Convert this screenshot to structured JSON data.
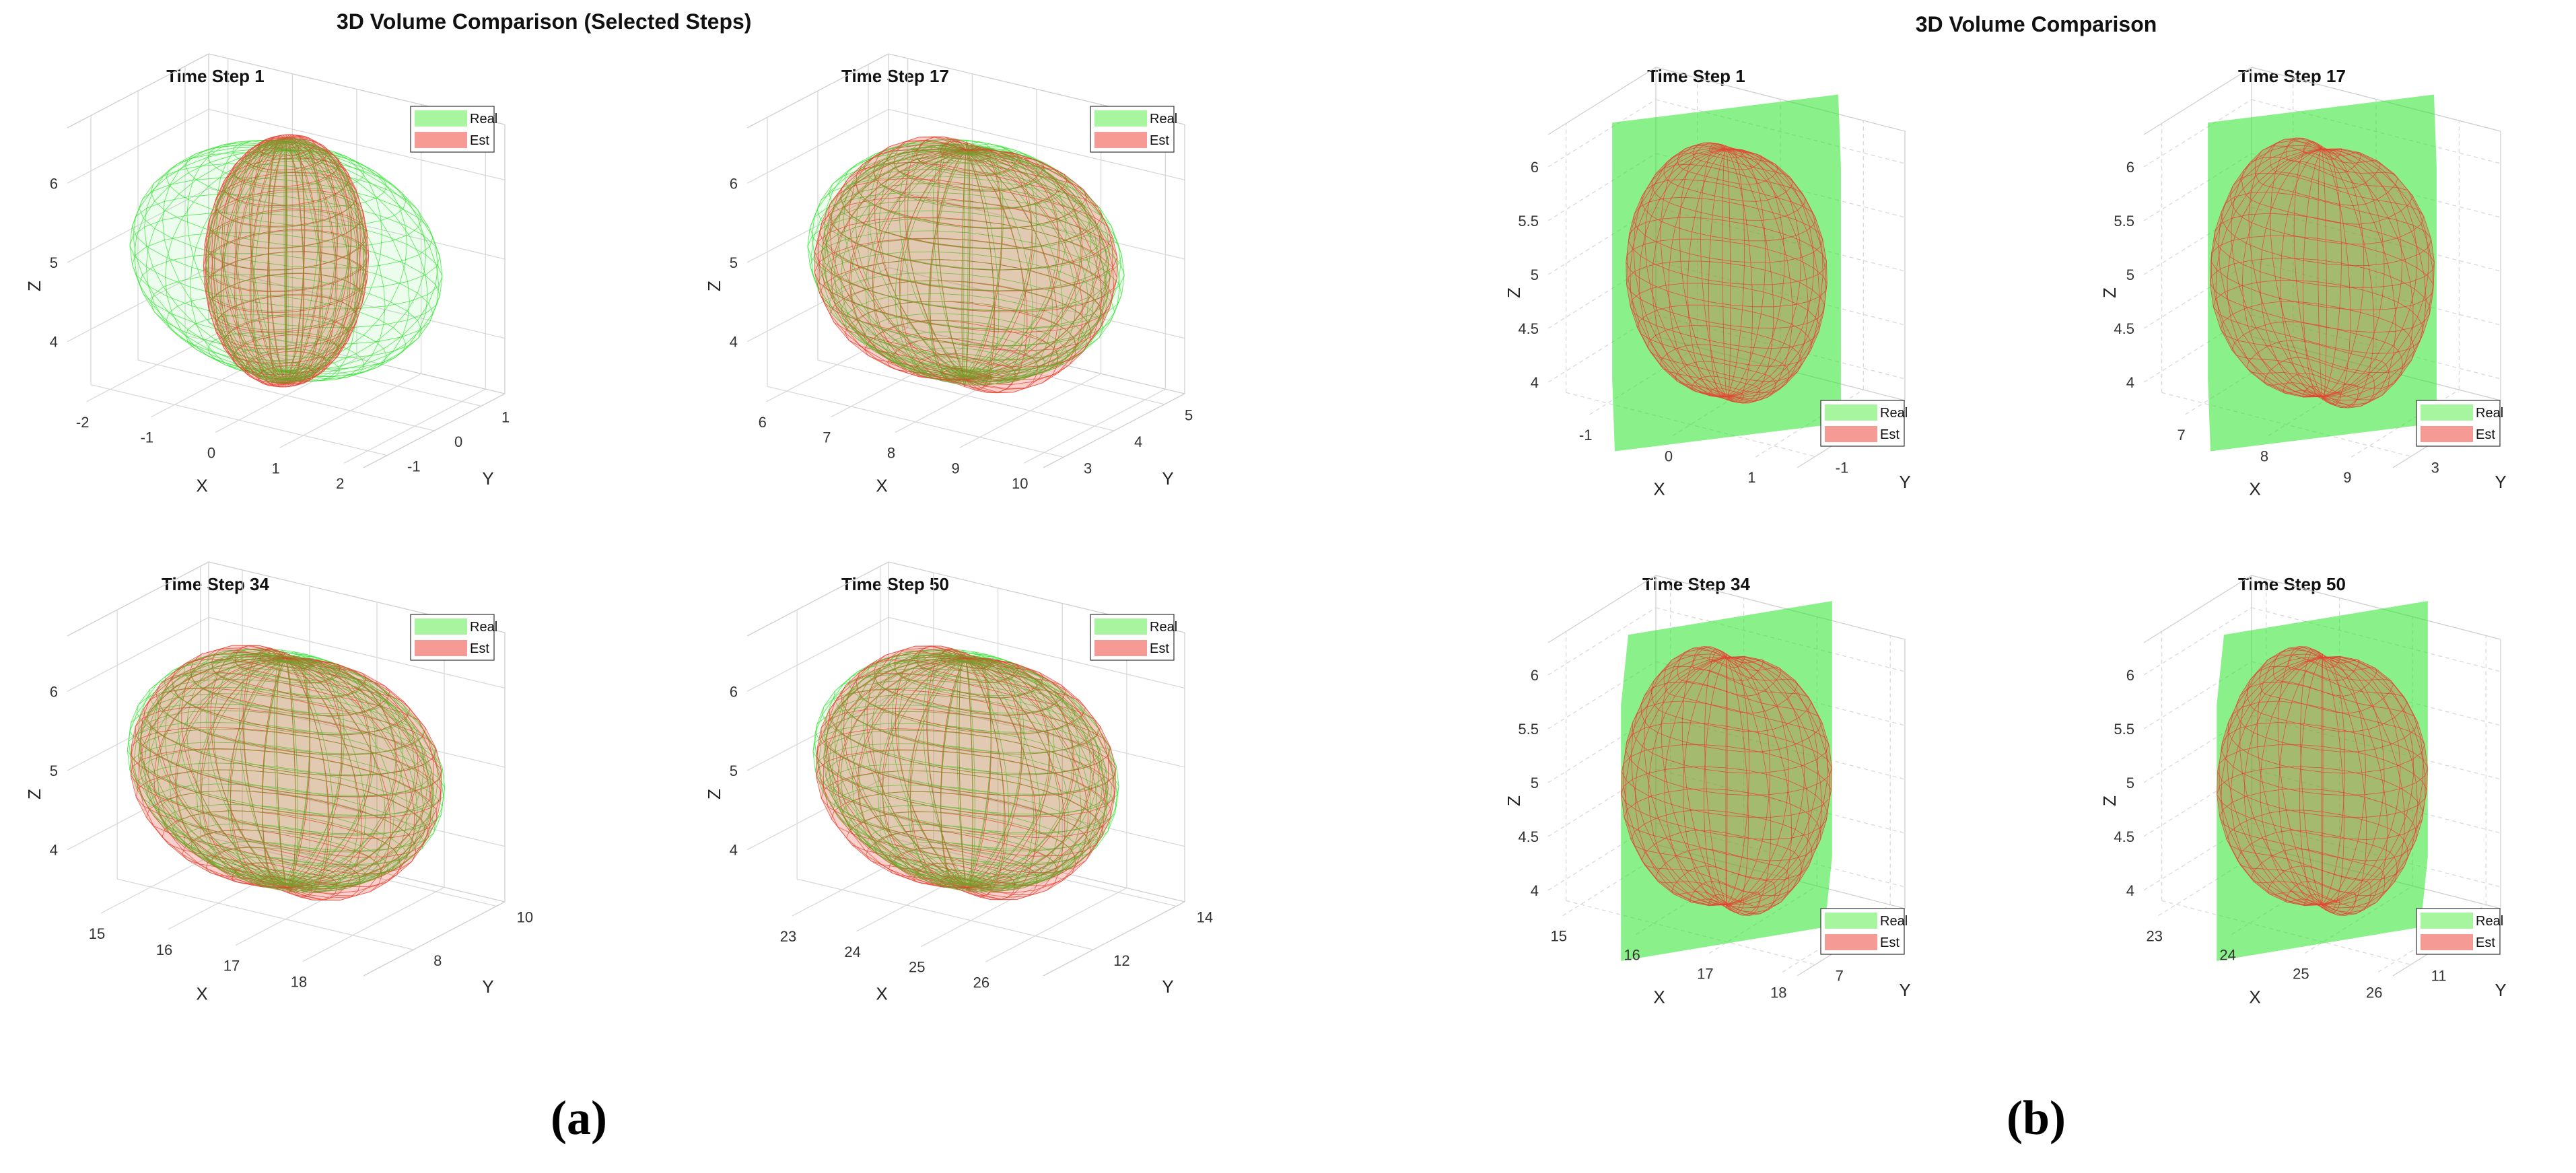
{
  "figure": {
    "left_title": "3D Volume Comparison (Selected Steps)",
    "right_title": "3D Volume Comparison",
    "label_a": "(a)",
    "label_b": "(b)"
  },
  "colors": {
    "real": "#33e633",
    "real_legend": "#a8f5a0",
    "est": "#e8402f",
    "est_legend": "#f59a95",
    "grid": "#d9d9d9",
    "axis": "#555555"
  },
  "chart_data": [
    {
      "type": "3d-surface",
      "panel": "a",
      "title": "Time Step 1",
      "shape": "sphere",
      "xlabel": "X",
      "ylabel": "Y",
      "zlabel": "Z",
      "xticks": [
        "-2",
        "-1",
        "0",
        "1",
        "2"
      ],
      "yticks": [
        "-1",
        "0",
        "1"
      ],
      "zticks": [
        "4",
        "5",
        "6"
      ],
      "xlim": [
        -2.3,
        2.3
      ],
      "ylim": [
        -1.5,
        1.5
      ],
      "zlim": [
        3.3,
        6.7
      ],
      "real": {
        "center": [
          0,
          0,
          5.0
        ],
        "radii": [
          2.2,
          1.4,
          1.4
        ]
      },
      "est": {
        "center": [
          0,
          0,
          5.0
        ],
        "radii": [
          1.0,
          1.1,
          1.55
        ]
      },
      "legend": [
        "Real",
        "Est"
      ],
      "legend_loc": "top-right"
    },
    {
      "type": "3d-surface",
      "panel": "a",
      "title": "Time Step 17",
      "shape": "sphere",
      "xlabel": "X",
      "ylabel": "Y",
      "zlabel": "Z",
      "xticks": [
        "6",
        "7",
        "8",
        "9",
        "10"
      ],
      "yticks": [
        "3",
        "4",
        "5"
      ],
      "zticks": [
        "4",
        "5",
        "6"
      ],
      "xlim": [
        5.7,
        10.3
      ],
      "ylim": [
        2.6,
        5.4
      ],
      "zlim": [
        3.3,
        6.7
      ],
      "real": {
        "center": [
          8,
          4,
          5.0
        ],
        "radii": [
          2.2,
          1.4,
          1.4
        ]
      },
      "est": {
        "center": [
          8,
          4,
          4.95
        ],
        "radii": [
          2.05,
          1.35,
          1.45
        ]
      },
      "legend": [
        "Real",
        "Est"
      ],
      "legend_loc": "top-right"
    },
    {
      "type": "3d-surface",
      "panel": "a",
      "title": "Time Step 34",
      "shape": "sphere",
      "xlabel": "X",
      "ylabel": "Y",
      "zlabel": "Z",
      "xticks": [
        "15",
        "16",
        "17",
        "18"
      ],
      "yticks": [
        "8",
        "10"
      ],
      "zticks": [
        "4",
        "5",
        "6"
      ],
      "xlim": [
        14.5,
        18.9
      ],
      "ylim": [
        6.8,
        10.2
      ],
      "zlim": [
        3.3,
        6.7
      ],
      "real": {
        "center": [
          16.7,
          8.5,
          5.0
        ],
        "radii": [
          2.2,
          1.4,
          1.4
        ]
      },
      "est": {
        "center": [
          16.7,
          8.5,
          4.95
        ],
        "radii": [
          2.1,
          1.38,
          1.45
        ]
      },
      "legend": [
        "Real",
        "Est"
      ],
      "legend_loc": "top-right"
    },
    {
      "type": "3d-surface",
      "panel": "a",
      "title": "Time Step 50",
      "shape": "sphere",
      "xlabel": "X",
      "ylabel": "Y",
      "zlabel": "Z",
      "xticks": [
        "23",
        "24",
        "25",
        "26"
      ],
      "yticks": [
        "12",
        "14"
      ],
      "zticks": [
        "4",
        "5",
        "6"
      ],
      "xlim": [
        22.3,
        26.9
      ],
      "ylim": [
        10.8,
        14.2
      ],
      "zlim": [
        3.3,
        6.7
      ],
      "real": {
        "center": [
          24.6,
          12.5,
          5.0
        ],
        "radii": [
          2.2,
          1.4,
          1.4
        ]
      },
      "est": {
        "center": [
          24.6,
          12.5,
          4.95
        ],
        "radii": [
          2.1,
          1.38,
          1.45
        ]
      },
      "legend": [
        "Real",
        "Est"
      ],
      "legend_loc": "top-right"
    },
    {
      "type": "3d-surface",
      "panel": "b",
      "title": "Time Step 1",
      "shape": "cube",
      "xlabel": "X",
      "ylabel": "Y",
      "zlabel": "Z",
      "xticks": [
        "-1",
        "0",
        "1"
      ],
      "yticks": [
        "-1"
      ],
      "zticks": [
        "4",
        "4.5",
        "5",
        "5.5",
        "6"
      ],
      "xlim": [
        -1.5,
        1.5
      ],
      "ylim": [
        -1.5,
        1.5
      ],
      "zlim": [
        3.8,
        6.3
      ],
      "real": {
        "center": [
          0,
          0,
          5.0
        ],
        "size": [
          2.5,
          2.5,
          2.5
        ]
      },
      "est": {
        "center": [
          0,
          0,
          5.0
        ],
        "radii": [
          1.1,
          1.1,
          1.15
        ]
      },
      "legend": [
        "Real",
        "Est"
      ],
      "legend_loc": "bottom-right"
    },
    {
      "type": "3d-surface",
      "panel": "b",
      "title": "Time Step 17",
      "shape": "cube",
      "xlabel": "X",
      "ylabel": "Y",
      "zlabel": "Z",
      "xticks": [
        "7",
        "8",
        "9"
      ],
      "yticks": [
        "3"
      ],
      "zticks": [
        "4",
        "4.5",
        "5",
        "5.5",
        "6"
      ],
      "xlim": [
        6.5,
        9.5
      ],
      "ylim": [
        2.5,
        5.5
      ],
      "zlim": [
        3.8,
        6.3
      ],
      "real": {
        "center": [
          8,
          4,
          5.0
        ],
        "size": [
          2.5,
          2.5,
          2.5
        ]
      },
      "est": {
        "center": [
          8,
          4,
          5.0
        ],
        "radii": [
          1.2,
          1.2,
          1.15
        ]
      },
      "legend": [
        "Real",
        "Est"
      ],
      "legend_loc": "bottom-right"
    },
    {
      "type": "3d-surface",
      "panel": "b",
      "title": "Time Step 34",
      "shape": "cube",
      "xlabel": "X",
      "ylabel": "Y",
      "zlabel": "Z",
      "xticks": [
        "15",
        "16",
        "17",
        "18"
      ],
      "yticks": [
        "7"
      ],
      "zticks": [
        "4",
        "4.5",
        "5",
        "5.5",
        "6"
      ],
      "xlim": [
        14.8,
        18.2
      ],
      "ylim": [
        6.5,
        9.5
      ],
      "zlim": [
        3.8,
        6.3
      ],
      "real": {
        "center": [
          16.5,
          8,
          5.0
        ],
        "size": [
          2.5,
          2.5,
          2.5
        ]
      },
      "est": {
        "center": [
          16.5,
          8,
          5.0
        ],
        "radii": [
          1.25,
          1.25,
          1.15
        ]
      },
      "legend": [
        "Real",
        "Est"
      ],
      "legend_loc": "bottom-right"
    },
    {
      "type": "3d-surface",
      "panel": "b",
      "title": "Time Step 50",
      "shape": "cube",
      "xlabel": "X",
      "ylabel": "Y",
      "zlabel": "Z",
      "xticks": [
        "23",
        "24",
        "25",
        "26"
      ],
      "yticks": [
        "11"
      ],
      "zticks": [
        "4",
        "4.5",
        "5",
        "5.5",
        "6"
      ],
      "xlim": [
        22.8,
        26.2
      ],
      "ylim": [
        10.5,
        13.5
      ],
      "zlim": [
        3.8,
        6.3
      ],
      "real": {
        "center": [
          24.5,
          12,
          5.0
        ],
        "size": [
          2.5,
          2.5,
          2.5
        ]
      },
      "est": {
        "center": [
          24.5,
          12,
          5.0
        ],
        "radii": [
          1.25,
          1.25,
          1.15
        ]
      },
      "legend": [
        "Real",
        "Est"
      ],
      "legend_loc": "bottom-right"
    }
  ]
}
